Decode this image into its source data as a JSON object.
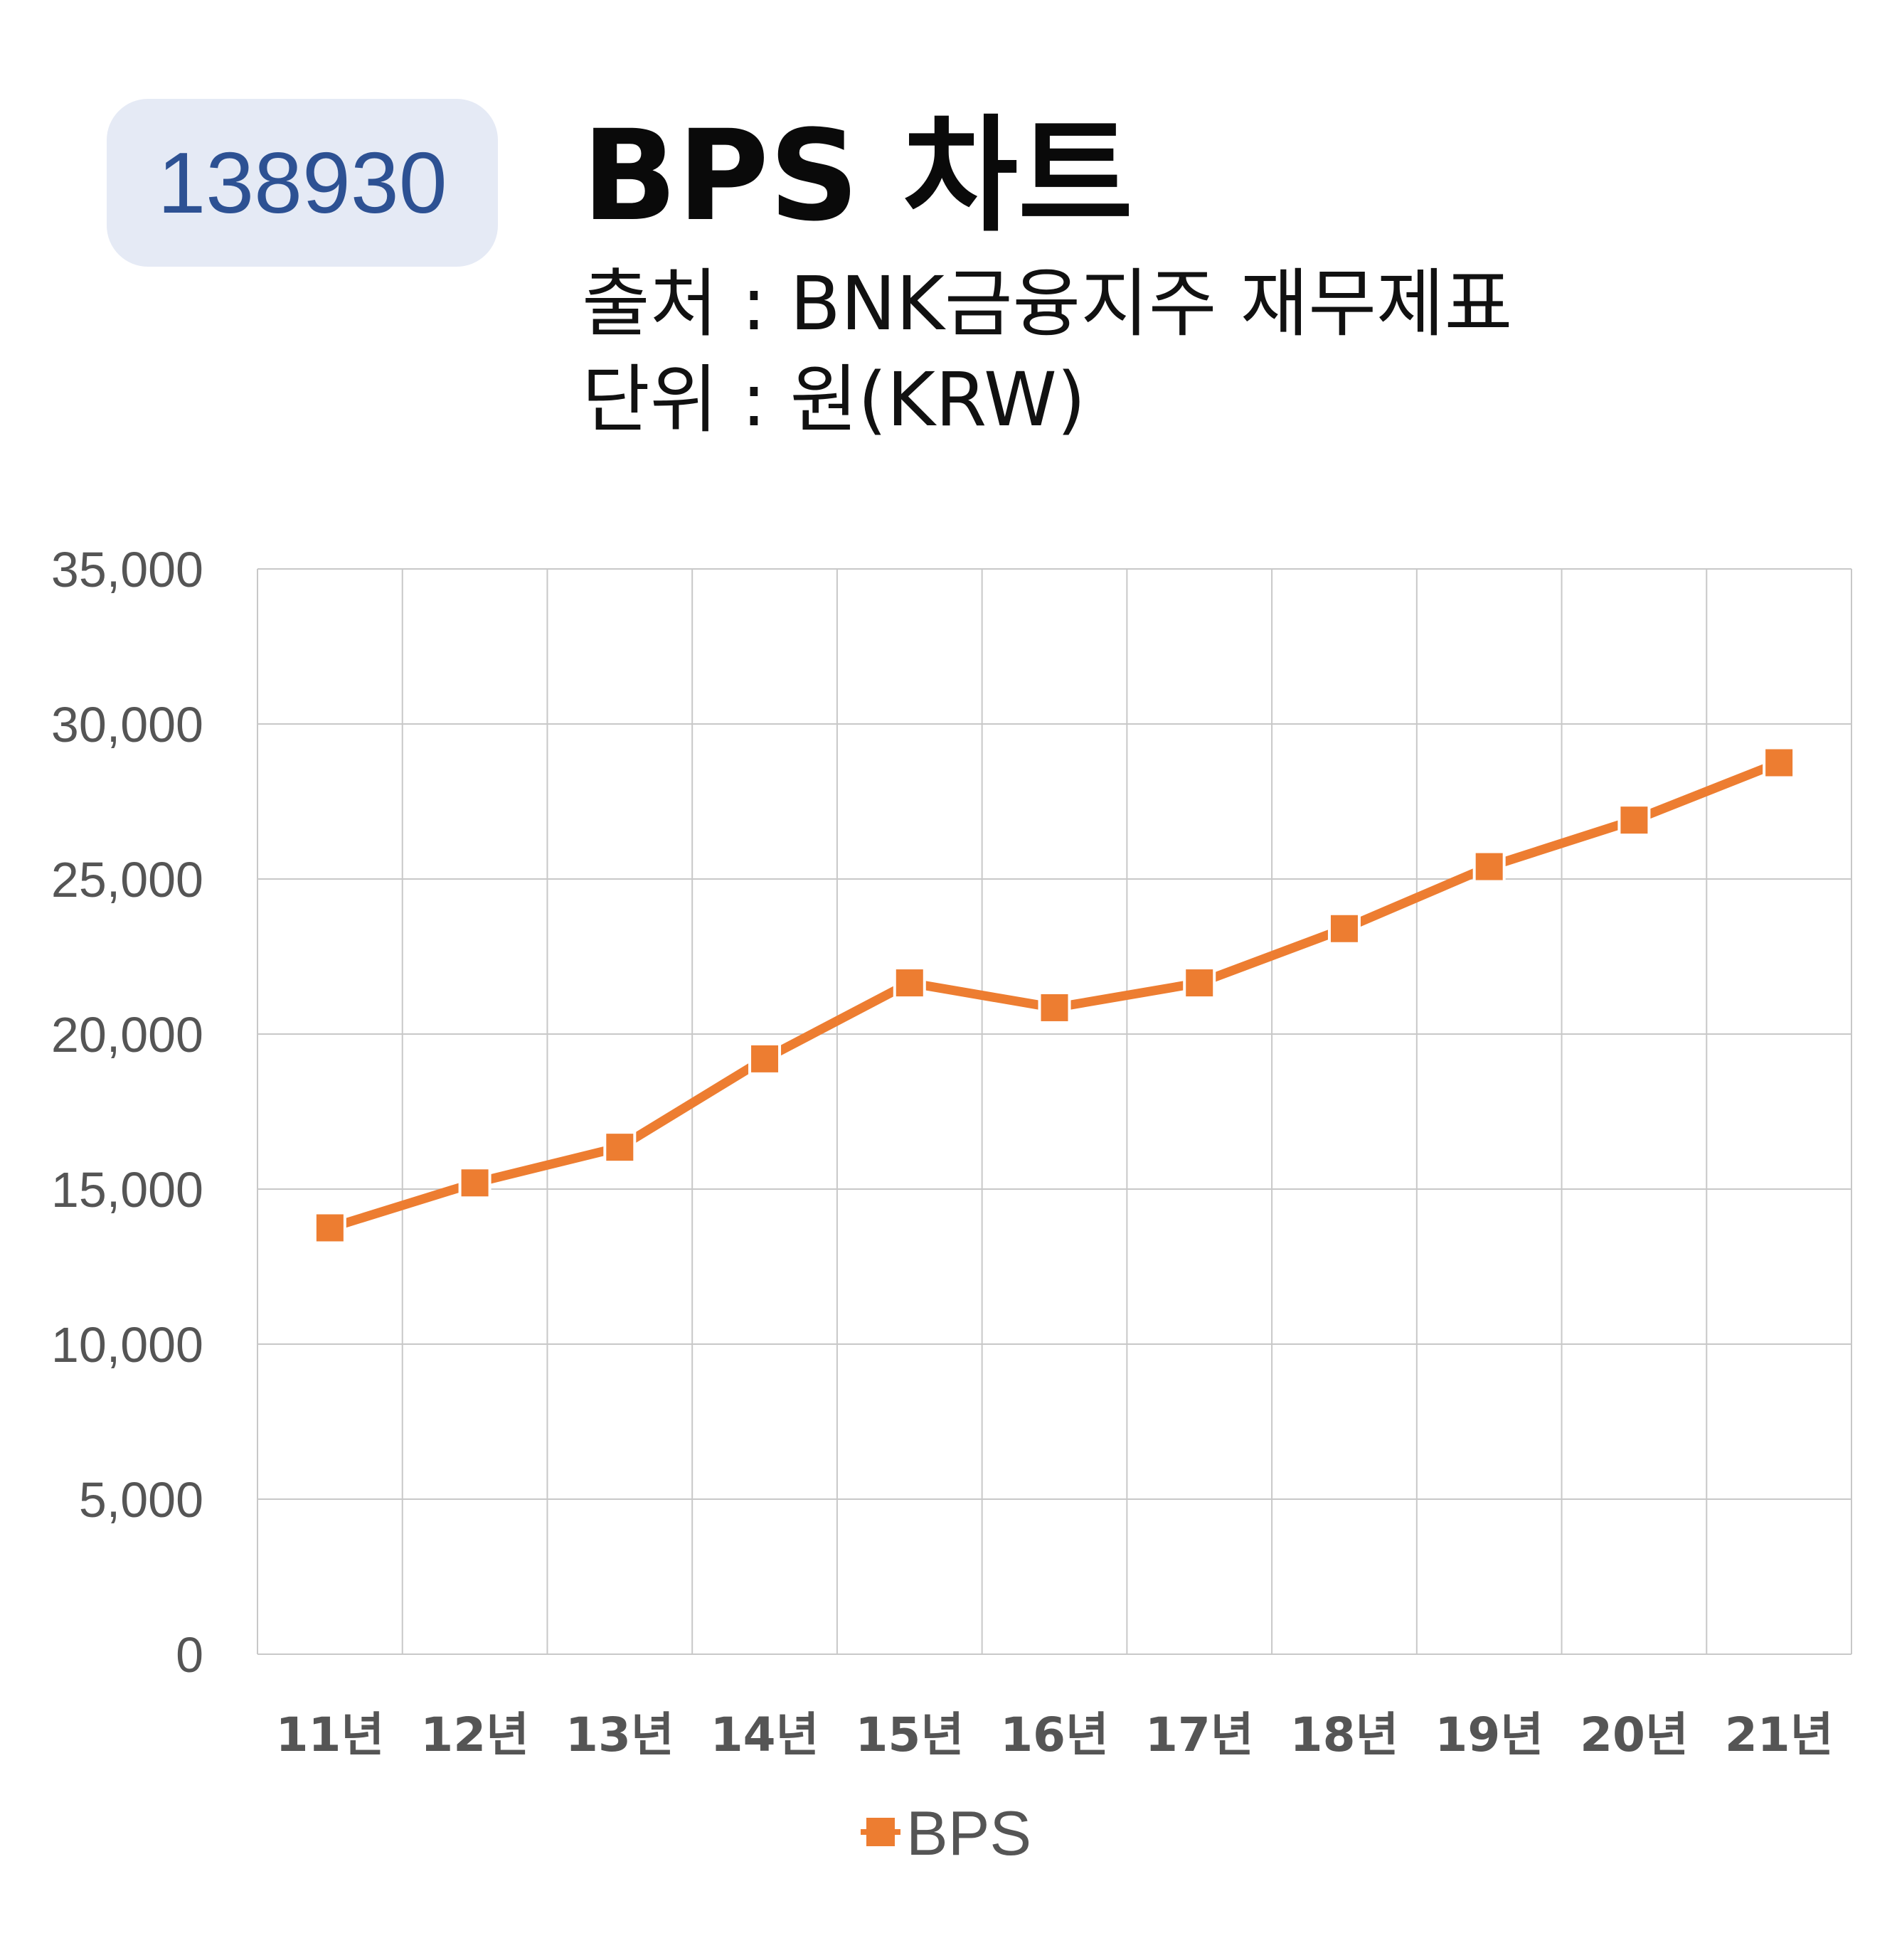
{
  "header": {
    "code": "138930",
    "title": "BPS 차트",
    "source": "출처 : BNK금융지주 재무제표",
    "unit": "단위 : 원(KRW)"
  },
  "colors": {
    "series": "#ed7d31",
    "grid": "#c8c8c8",
    "badge_bg": "#e5eaf5",
    "badge_text": "#2d5193"
  },
  "chart_data": {
    "type": "line",
    "categories": [
      "11년",
      "12년",
      "13년",
      "14년",
      "15년",
      "16년",
      "17년",
      "18년",
      "19년",
      "20년",
      "21년"
    ],
    "series": [
      {
        "name": "BPS",
        "values": [
          13750,
          15200,
          16350,
          19200,
          21650,
          20850,
          21650,
          23400,
          25400,
          26900,
          28750
        ]
      }
    ],
    "ylim": [
      0,
      35000
    ],
    "yticks": [
      0,
      5000,
      10000,
      15000,
      20000,
      25000,
      30000,
      35000
    ],
    "ytick_labels": [
      "0",
      "5,000",
      "10,000",
      "15,000",
      "20,000",
      "25,000",
      "30,000",
      "35,000"
    ],
    "grid": true,
    "legend": "bottom"
  }
}
